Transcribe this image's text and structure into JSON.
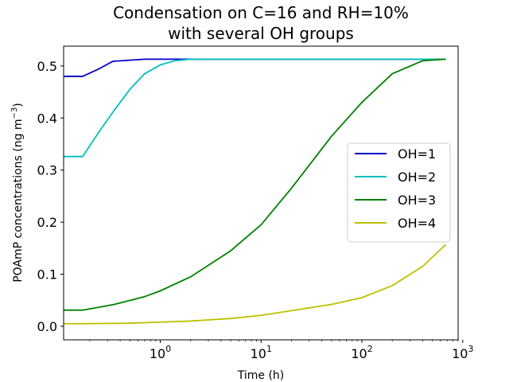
{
  "chart_data": {
    "type": "line",
    "title_line1": "Condensation on C=16 and RH=10%",
    "title_line2": "with several OH groups",
    "xlabel": "Time (h)",
    "ylabel_main": "POAmP concentrations (ng m",
    "ylabel_sup": "−3",
    "ylabel_close": ")",
    "xscale": "log",
    "xlim": [
      0.11,
      900
    ],
    "ylim": [
      -0.026,
      0.538
    ],
    "xticks": [
      {
        "value": 1,
        "base": "10",
        "exp": "0"
      },
      {
        "value": 10,
        "base": "10",
        "exp": "1"
      },
      {
        "value": 100,
        "base": "10",
        "exp": "2"
      },
      {
        "value": 1000,
        "base": "10",
        "exp": "3"
      }
    ],
    "yticks": [
      {
        "value": 0.0,
        "label": "0.0"
      },
      {
        "value": 0.1,
        "label": "0.1"
      },
      {
        "value": 0.2,
        "label": "0.2"
      },
      {
        "value": 0.3,
        "label": "0.3"
      },
      {
        "value": 0.4,
        "label": "0.4"
      },
      {
        "value": 0.5,
        "label": "0.5"
      }
    ],
    "grid": false,
    "legend_position": "center-right",
    "series": [
      {
        "name": "OH=1",
        "color": "#0000cc",
        "points": [
          [
            0.11,
            0.48
          ],
          [
            0.17,
            0.48
          ],
          [
            0.25,
            0.495
          ],
          [
            0.34,
            0.509
          ],
          [
            0.5,
            0.511
          ],
          [
            0.7,
            0.513
          ],
          [
            1.0,
            0.513
          ],
          [
            2.0,
            0.513
          ],
          [
            5.0,
            0.513
          ],
          [
            10,
            0.513
          ],
          [
            100,
            0.513
          ],
          [
            680,
            0.513
          ]
        ]
      },
      {
        "name": "OH=2",
        "color": "#00bfbf",
        "points": [
          [
            0.11,
            0.326
          ],
          [
            0.17,
            0.326
          ],
          [
            0.25,
            0.375
          ],
          [
            0.35,
            0.415
          ],
          [
            0.5,
            0.455
          ],
          [
            0.7,
            0.485
          ],
          [
            1.0,
            0.502
          ],
          [
            1.4,
            0.51
          ],
          [
            2.0,
            0.513
          ],
          [
            5.0,
            0.513
          ],
          [
            100,
            0.513
          ],
          [
            680,
            0.513
          ]
        ]
      },
      {
        "name": "OH=3",
        "color": "#008000",
        "points": [
          [
            0.11,
            0.031
          ],
          [
            0.17,
            0.031
          ],
          [
            0.35,
            0.042
          ],
          [
            0.7,
            0.057
          ],
          [
            1.0,
            0.068
          ],
          [
            2.0,
            0.095
          ],
          [
            5.0,
            0.145
          ],
          [
            10,
            0.195
          ],
          [
            20,
            0.265
          ],
          [
            50,
            0.365
          ],
          [
            100,
            0.43
          ],
          [
            200,
            0.485
          ],
          [
            400,
            0.51
          ],
          [
            680,
            0.513
          ]
        ]
      },
      {
        "name": "OH=4",
        "color": "#bfbf00",
        "points": [
          [
            0.11,
            0.005
          ],
          [
            0.17,
            0.005
          ],
          [
            0.5,
            0.006
          ],
          [
            1.0,
            0.008
          ],
          [
            2.0,
            0.01
          ],
          [
            5.0,
            0.015
          ],
          [
            10,
            0.021
          ],
          [
            20,
            0.03
          ],
          [
            50,
            0.042
          ],
          [
            100,
            0.055
          ],
          [
            200,
            0.078
          ],
          [
            400,
            0.115
          ],
          [
            680,
            0.157
          ]
        ]
      }
    ]
  }
}
